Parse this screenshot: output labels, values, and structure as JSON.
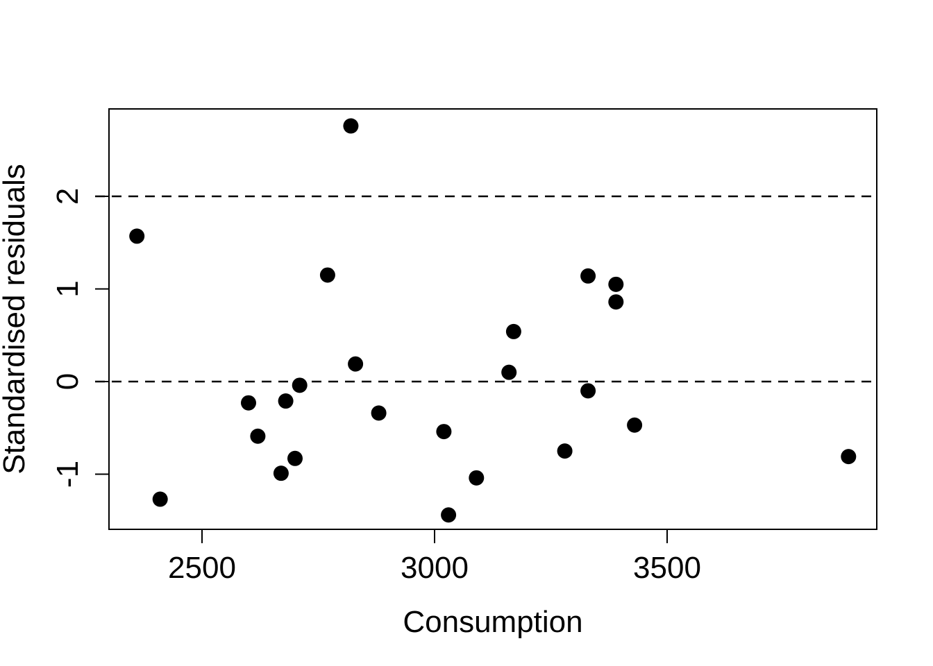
{
  "chart_data": {
    "type": "scatter",
    "xlabel": "Consumption",
    "ylabel": "Standardised residuals",
    "xlim": [
      2300,
      3950
    ],
    "ylim": [
      -1.6,
      2.9
    ],
    "x_ticks": [
      2500,
      3000,
      3500
    ],
    "y_ticks": [
      -1,
      0,
      1,
      2
    ],
    "x_tick_labels": [
      "2500",
      "3000",
      "3500"
    ],
    "y_tick_labels": [
      "-1",
      "0",
      "1",
      "2"
    ],
    "reference_lines": [
      {
        "y": 2,
        "style": "dashed"
      },
      {
        "y": 0,
        "style": "dashed"
      }
    ],
    "grid": false,
    "marker_color": "#000000",
    "points": [
      {
        "x": 2360,
        "y": 1.57
      },
      {
        "x": 2410,
        "y": -1.27
      },
      {
        "x": 2600,
        "y": -0.23
      },
      {
        "x": 2620,
        "y": -0.59
      },
      {
        "x": 2670,
        "y": -0.99
      },
      {
        "x": 2680,
        "y": -0.21
      },
      {
        "x": 2700,
        "y": -0.83
      },
      {
        "x": 2710,
        "y": -0.04
      },
      {
        "x": 2770,
        "y": 1.15
      },
      {
        "x": 2820,
        "y": 2.76
      },
      {
        "x": 2830,
        "y": 0.19
      },
      {
        "x": 2880,
        "y": -0.34
      },
      {
        "x": 3020,
        "y": -0.54
      },
      {
        "x": 3030,
        "y": -1.44
      },
      {
        "x": 3090,
        "y": -1.04
      },
      {
        "x": 3160,
        "y": 0.1
      },
      {
        "x": 3170,
        "y": 0.54
      },
      {
        "x": 3280,
        "y": -0.75
      },
      {
        "x": 3330,
        "y": 1.14
      },
      {
        "x": 3330,
        "y": -0.1
      },
      {
        "x": 3390,
        "y": 1.05
      },
      {
        "x": 3390,
        "y": 0.86
      },
      {
        "x": 3430,
        "y": -0.47
      },
      {
        "x": 3890,
        "y": -0.81
      }
    ]
  }
}
